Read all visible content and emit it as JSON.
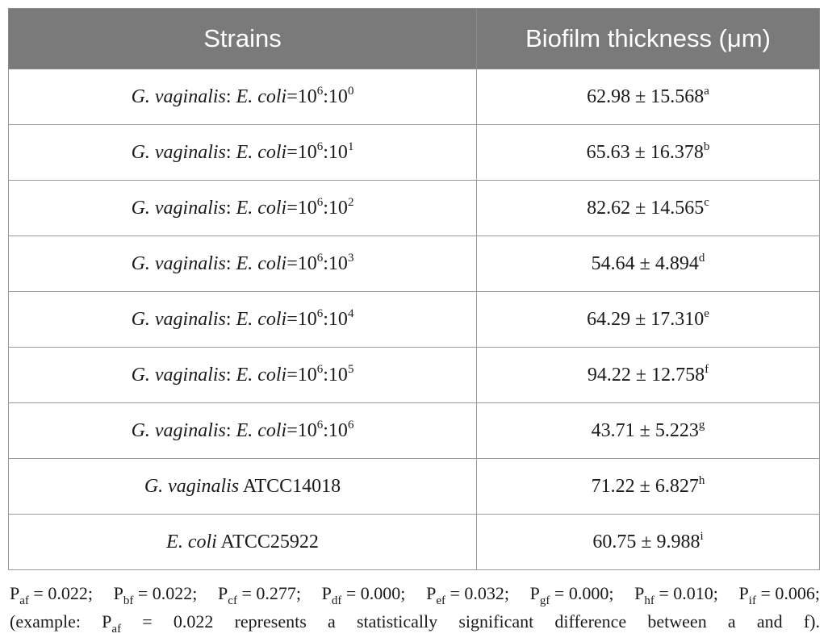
{
  "table": {
    "headers": [
      "Strains",
      "Biofilm thickness (μm)"
    ],
    "rows": [
      {
        "prefix": "G. vaginalis",
        "sep": ": ",
        "organism2": "E. coli",
        "eq": "=10",
        "exp1": "6",
        "mid": ":10",
        "exp2": "0",
        "value": "62.98 ± 15.568",
        "sig": "a"
      },
      {
        "prefix": "G. vaginalis",
        "sep": ": ",
        "organism2": "E. coli",
        "eq": "=10",
        "exp1": "6",
        "mid": ":10",
        "exp2": "1",
        "value": "65.63 ± 16.378",
        "sig": "b"
      },
      {
        "prefix": "G. vaginalis",
        "sep": ": ",
        "organism2": "E. coli",
        "eq": "=10",
        "exp1": "6",
        "mid": ":10",
        "exp2": "2",
        "value": "82.62 ± 14.565",
        "sig": "c"
      },
      {
        "prefix": "G. vaginalis",
        "sep": ": ",
        "organism2": "E. coli",
        "eq": "=10",
        "exp1": "6",
        "mid": ":10",
        "exp2": "3",
        "value": "54.64 ± 4.894",
        "sig": "d"
      },
      {
        "prefix": "G. vaginalis",
        "sep": ": ",
        "organism2": "E. coli",
        "eq": "=10",
        "exp1": "6",
        "mid": ":10",
        "exp2": "4",
        "value": "64.29 ± 17.310",
        "sig": "e"
      },
      {
        "prefix": "G. vaginalis",
        "sep": ": ",
        "organism2": "E. coli",
        "eq": "=10",
        "exp1": "6",
        "mid": ":10",
        "exp2": "5",
        "value": "94.22 ± 12.758",
        "sig": "f"
      },
      {
        "prefix": "G. vaginalis",
        "sep": ": ",
        "organism2": "E. coli",
        "eq": "=10",
        "exp1": "6",
        "mid": ":10",
        "exp2": "6",
        "value": "43.71 ± 5.223",
        "sig": "g"
      },
      {
        "organism": "G. vaginalis",
        "strain": " ATCC14018",
        "value": "71.22 ± 6.827",
        "sig": "h"
      },
      {
        "organism": "E. coli",
        "strain": " ATCC25922",
        "value": "60.75 ± 9.988",
        "sig": "i"
      }
    ]
  },
  "footnote": {
    "p_values": [
      {
        "label": "P",
        "sub": "af",
        "rest": " = 0.022;"
      },
      {
        "label": "P",
        "sub": "bf",
        "rest": " = 0.022;"
      },
      {
        "label": "P",
        "sub": "cf",
        "rest": " = 0.277;"
      },
      {
        "label": "P",
        "sub": "df",
        "rest": " = 0.000;"
      },
      {
        "label": "P",
        "sub": "ef",
        "rest": " = 0.032;"
      },
      {
        "label": "P",
        "sub": "gf",
        "rest": " = 0.000;"
      },
      {
        "label": "P",
        "sub": "hf",
        "rest": " = 0.010;"
      },
      {
        "label": "P",
        "sub": "if",
        "rest": " = 0.006;"
      }
    ],
    "example_open": "(example: P",
    "example_sub": "af",
    "example_rest": " = 0.022 represents a statistically significant difference between a and f)."
  }
}
